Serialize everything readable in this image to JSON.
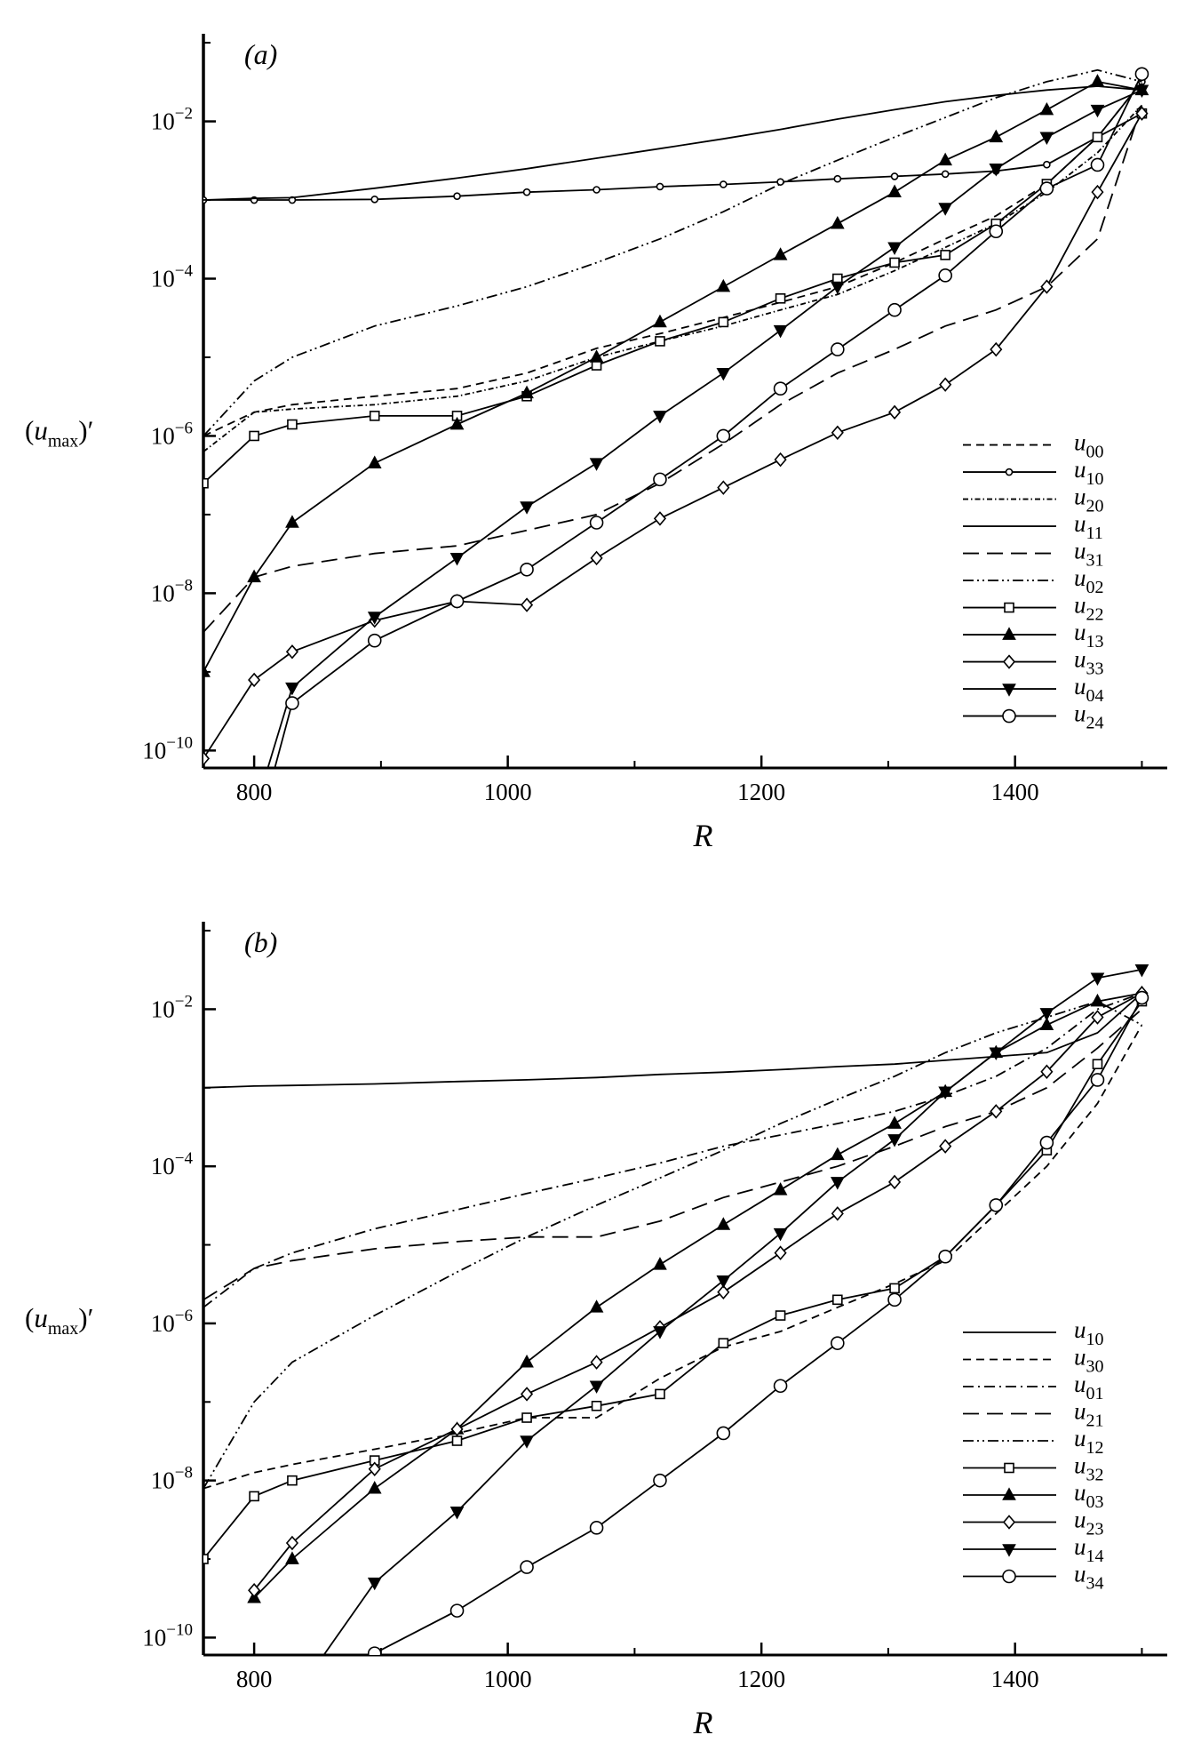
{
  "chart_data": [
    {
      "type": "line",
      "panel_label": "(a)",
      "x_label": "R",
      "y_label": "(umax)′",
      "log_y": true,
      "legend": "right",
      "xlim": [
        760,
        1520
      ],
      "ylim": [
        6e-11,
        0.13
      ],
      "xticks": [
        800,
        1000,
        1200,
        1400
      ],
      "minor_xticks": [
        900,
        1100,
        1300,
        1500
      ],
      "yticks": [
        {
          "value": 1e-10,
          "label": "10−10"
        },
        {
          "value": 1e-08,
          "label": "10−8"
        },
        {
          "value": 1e-06,
          "label": "10−6"
        },
        {
          "value": 0.0001,
          "label": "10−4"
        },
        {
          "value": 0.01,
          "label": "10−2"
        }
      ],
      "minor_yticks": [
        1e-09,
        1e-07,
        1e-05,
        0.001,
        0.1
      ],
      "x": [
        760,
        800,
        830,
        895,
        960,
        1015,
        1070,
        1120,
        1170,
        1215,
        1260,
        1305,
        1345,
        1385,
        1425,
        1465,
        1500
      ],
      "series": [
        {
          "name": "u00",
          "color": "#000000",
          "dash": "dash",
          "marker": "none",
          "values": [
            1e-06,
            2e-06,
            2.5e-06,
            3.2e-06,
            4e-06,
            6.3e-06,
            1.3e-05,
            2e-05,
            3.2e-05,
            5e-05,
            7.9e-05,
            0.00016,
            0.00032,
            0.00063,
            0.0016,
            0.0063,
            0.032
          ]
        },
        {
          "name": "u10",
          "color": "#000000",
          "dash": "solid",
          "marker": "circle-small",
          "values": [
            0.001,
            0.001,
            0.001,
            0.00102,
            0.00112,
            0.00126,
            0.00135,
            0.00148,
            0.00158,
            0.0017,
            0.00186,
            0.002,
            0.00214,
            0.00234,
            0.00282,
            0.0063,
            0.032
          ]
        },
        {
          "name": "u20",
          "color": "#000000",
          "dash": "dashdot-fine",
          "marker": "none",
          "values": [
            6.3e-07,
            2e-06,
            2.2e-06,
            2.5e-06,
            3.2e-06,
            5e-06,
            1e-05,
            1.6e-05,
            2.5e-05,
            4e-05,
            6.3e-05,
            0.000126,
            0.00025,
            0.0005,
            0.00126,
            0.004,
            0.016
          ]
        },
        {
          "name": "u11",
          "color": "#000000",
          "dash": "solid",
          "marker": "none",
          "values": [
            0.001,
            0.00105,
            0.00107,
            0.00141,
            0.0019,
            0.0025,
            0.0034,
            0.0045,
            0.006,
            0.0079,
            0.0107,
            0.0141,
            0.0178,
            0.0214,
            0.025,
            0.028,
            0.025
          ]
        },
        {
          "name": "u31",
          "color": "#000000",
          "dash": "longdash",
          "marker": "none",
          "values": [
            3.2e-09,
            1.6e-08,
            2.2e-08,
            3.2e-08,
            4e-08,
            6.3e-08,
            1e-07,
            2.5e-07,
            7.9e-07,
            2.5e-06,
            6.3e-06,
            1.26e-05,
            2.5e-05,
            4e-05,
            7.9e-05,
            0.00032,
            0.016
          ]
        },
        {
          "name": "u02",
          "color": "#000000",
          "dash": "dashdotdot",
          "marker": "none",
          "values": [
            1e-06,
            5e-06,
            1e-05,
            2.5e-05,
            4.5e-05,
            7.9e-05,
            0.00016,
            0.00032,
            0.00071,
            0.0016,
            0.0032,
            0.0063,
            0.0112,
            0.02,
            0.032,
            0.045,
            0.032
          ]
        },
        {
          "name": "u22",
          "color": "#000000",
          "dash": "solid",
          "marker": "square",
          "values": [
            2.5e-07,
            1e-06,
            1.4e-06,
            1.8e-06,
            1.8e-06,
            3.2e-06,
            7.9e-06,
            1.6e-05,
            2.8e-05,
            5.6e-05,
            0.0001,
            0.00016,
            0.0002,
            0.0005,
            0.0016,
            0.0063,
            0.0126
          ]
        },
        {
          "name": "u13",
          "color": "#000000",
          "dash": "solid",
          "marker": "triangle-up",
          "values": [
            1e-09,
            1.6e-08,
            7.9e-08,
            4.5e-07,
            1.4e-06,
            3.5e-06,
            1e-05,
            2.8e-05,
            7.9e-05,
            0.0002,
            0.0005,
            0.00126,
            0.0032,
            0.0063,
            0.014,
            0.032,
            0.025
          ]
        },
        {
          "name": "u33",
          "color": "#000000",
          "dash": "solid",
          "marker": "diamond",
          "values": [
            7.9e-11,
            7.9e-10,
            1.8e-09,
            4.5e-09,
            7.9e-09,
            7.1e-09,
            2.8e-08,
            8.9e-08,
            2.2e-07,
            5e-07,
            1.1e-06,
            2e-06,
            4.5e-06,
            1.26e-05,
            7.9e-05,
            0.00126,
            0.0126
          ]
        },
        {
          "name": "u04",
          "color": "#000000",
          "dash": "solid",
          "marker": "triangle-down",
          "values": [
            null,
            1.6e-11,
            6.3e-10,
            5e-09,
            2.8e-08,
            1.26e-07,
            4.5e-07,
            1.8e-06,
            6.3e-06,
            2.2e-05,
            7.9e-05,
            0.00025,
            0.00079,
            0.0025,
            0.0063,
            0.014,
            0.025
          ]
        },
        {
          "name": "u24",
          "color": "#000000",
          "dash": "solid",
          "marker": "circle",
          "values": [
            null,
            6.3e-12,
            4e-10,
            2.5e-09,
            7.9e-09,
            2e-08,
            7.9e-08,
            2.8e-07,
            1e-06,
            4e-06,
            1.26e-05,
            4e-05,
            0.00011,
            0.0004,
            0.0014,
            0.0028,
            0.04
          ]
        }
      ]
    },
    {
      "type": "line",
      "panel_label": "(b)",
      "x_label": "R",
      "y_label": "(umax)′",
      "log_y": true,
      "legend": "right",
      "xlim": [
        760,
        1520
      ],
      "ylim": [
        6e-11,
        0.13
      ],
      "xticks": [
        800,
        1000,
        1200,
        1400
      ],
      "minor_xticks": [
        900,
        1100,
        1300,
        1500
      ],
      "yticks": [
        {
          "value": 1e-10,
          "label": "10−10"
        },
        {
          "value": 1e-08,
          "label": "10−8"
        },
        {
          "value": 1e-06,
          "label": "10−6"
        },
        {
          "value": 0.0001,
          "label": "10−4"
        },
        {
          "value": 0.01,
          "label": "10−2"
        }
      ],
      "minor_yticks": [
        1e-09,
        1e-07,
        1e-05,
        0.001,
        0.1
      ],
      "x": [
        760,
        800,
        830,
        895,
        960,
        1015,
        1070,
        1120,
        1170,
        1215,
        1260,
        1305,
        1345,
        1385,
        1425,
        1465,
        1500
      ],
      "series": [
        {
          "name": "u10",
          "color": "#000000",
          "dash": "solid",
          "marker": "none",
          "values": [
            0.001,
            0.00105,
            0.00107,
            0.00112,
            0.0012,
            0.00126,
            0.00135,
            0.00148,
            0.00158,
            0.0017,
            0.00186,
            0.002,
            0.00224,
            0.0025,
            0.0028,
            0.005,
            0.016
          ]
        },
        {
          "name": "u30",
          "color": "#000000",
          "dash": "dash",
          "marker": "none",
          "values": [
            7.9e-09,
            1.26e-08,
            1.6e-08,
            2.5e-08,
            4e-08,
            6.3e-08,
            6.3e-08,
            2e-07,
            5e-07,
            7.9e-07,
            1.6e-06,
            3.2e-06,
            6.3e-06,
            2.5e-05,
            0.0001,
            0.00063,
            0.0063
          ]
        },
        {
          "name": "u01",
          "color": "#000000",
          "dash": "dashdot",
          "marker": "none",
          "values": [
            1.6e-06,
            5e-06,
            7.9e-06,
            1.6e-05,
            2.8e-05,
            4.5e-05,
            7.1e-05,
            0.00011,
            0.00018,
            0.00025,
            0.00035,
            0.0005,
            0.00079,
            0.0014,
            0.0032,
            0.01,
            0.016
          ]
        },
        {
          "name": "u21",
          "color": "#000000",
          "dash": "longdash",
          "marker": "none",
          "values": [
            2e-06,
            5e-06,
            6.3e-06,
            8.9e-06,
            1.1e-05,
            1.26e-05,
            1.26e-05,
            2e-05,
            4e-05,
            6.3e-05,
            0.0001,
            0.00018,
            0.00032,
            0.0005,
            0.001,
            0.0032,
            0.01
          ]
        },
        {
          "name": "u12",
          "color": "#000000",
          "dash": "dashdotdot",
          "marker": "none",
          "values": [
            7.9e-09,
            1e-07,
            3.2e-07,
            1.26e-06,
            4.5e-06,
            1.26e-05,
            3.2e-05,
            7.1e-05,
            0.00016,
            0.00035,
            0.00071,
            0.0014,
            0.0028,
            0.005,
            0.0079,
            0.0126,
            0.0063
          ]
        },
        {
          "name": "u32",
          "color": "#000000",
          "dash": "solid",
          "marker": "square",
          "values": [
            1e-09,
            6.3e-09,
            1e-08,
            1.8e-08,
            3.2e-08,
            6.3e-08,
            8.9e-08,
            1.26e-07,
            5.6e-07,
            1.26e-06,
            2e-06,
            2.8e-06,
            7.1e-06,
            3.2e-05,
            0.00016,
            0.002,
            0.0126
          ]
        },
        {
          "name": "u03",
          "color": "#000000",
          "dash": "solid",
          "marker": "triangle-up",
          "values": [
            null,
            3.2e-10,
            1e-09,
            7.9e-09,
            4.5e-08,
            3.2e-07,
            1.6e-06,
            5.6e-06,
            1.8e-05,
            5e-05,
            0.00014,
            0.00035,
            0.00089,
            0.0028,
            0.0063,
            0.0126,
            0.016
          ]
        },
        {
          "name": "u23",
          "color": "#000000",
          "dash": "solid",
          "marker": "diamond",
          "values": [
            null,
            4e-10,
            1.6e-09,
            1.4e-08,
            4.5e-08,
            1.26e-07,
            3.2e-07,
            8.9e-07,
            2.5e-06,
            7.9e-06,
            2.5e-05,
            6.3e-05,
            0.00018,
            0.0005,
            0.0016,
            0.0079,
            0.016
          ]
        },
        {
          "name": "u14",
          "color": "#000000",
          "dash": "solid",
          "marker": "triangle-down",
          "values": [
            null,
            null,
            1.6e-11,
            5e-10,
            4e-09,
            3.2e-08,
            1.6e-07,
            7.9e-07,
            3.5e-06,
            1.4e-05,
            6.3e-05,
            0.00022,
            0.00089,
            0.0028,
            0.0089,
            0.025,
            0.032
          ]
        },
        {
          "name": "u34",
          "color": "#000000",
          "dash": "solid",
          "marker": "circle",
          "values": [
            null,
            null,
            null,
            6.3e-11,
            2.2e-10,
            7.9e-10,
            2.5e-09,
            1e-08,
            4e-08,
            1.6e-07,
            5.6e-07,
            2e-06,
            7.1e-06,
            3.2e-05,
            0.0002,
            0.00126,
            0.014
          ]
        }
      ]
    }
  ]
}
